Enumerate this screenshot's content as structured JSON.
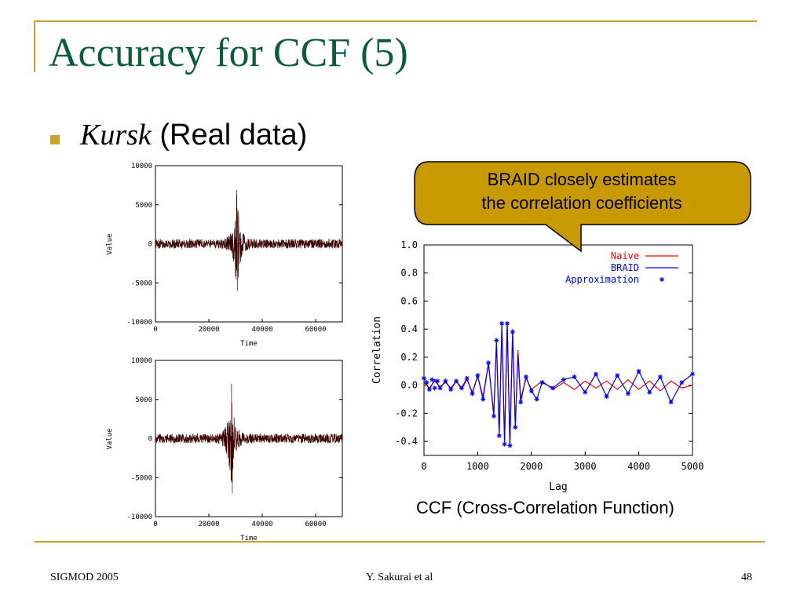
{
  "slide": {
    "title": "Accuracy for CCF (5)",
    "bullet_italic": "Kursk",
    "bullet_rest": " (Real data)",
    "callout_line1": "BRAID closely estimates",
    "callout_line2": "the correlation coefficients",
    "caption": "CCF (Cross-Correlation Function)",
    "footer_left": "SIGMOD 2005",
    "footer_mid": "Y. Sakurai et al",
    "footer_right": "48"
  },
  "colors": {
    "title": "#0b5d3b",
    "accent": "#c9a227",
    "callout_fill": "#c89a00",
    "signal": "#3a0000",
    "naive": "#ff0000",
    "braid": "#0000ff"
  },
  "chart_data": [
    {
      "type": "line",
      "series": [
        {
          "name": "",
          "seed": 1,
          "base_amplitude": 600,
          "peaks": [
            {
              "x": 30500,
              "y": 6900
            },
            {
              "x": 30800,
              "y": -6000
            }
          ]
        }
      ],
      "xlabel": "Time",
      "ylabel": "Value",
      "xlim": [
        0,
        70000
      ],
      "ylim": [
        -10000,
        10000
      ],
      "xticks": [
        0,
        20000,
        40000,
        60000
      ],
      "yticks": [
        10000,
        5000,
        0,
        -5000,
        -10000
      ],
      "grid": false
    },
    {
      "type": "line",
      "series": [
        {
          "name": "",
          "seed": 7,
          "base_amplitude": 600,
          "peaks": [
            {
              "x": 28500,
              "y": 7000
            },
            {
              "x": 28800,
              "y": -7000
            }
          ]
        }
      ],
      "xlabel": "Time",
      "ylabel": "Value",
      "xlim": [
        0,
        70000
      ],
      "ylim": [
        -10000,
        10000
      ],
      "xticks": [
        0,
        20000,
        40000,
        60000
      ],
      "yticks": [
        10000,
        5000,
        0,
        -5000,
        -10000
      ],
      "grid": false
    },
    {
      "type": "line",
      "xlabel": "Lag",
      "ylabel": "Correlation",
      "xlim": [
        0,
        5000
      ],
      "ylim": [
        -0.5,
        1.0
      ],
      "xticks": [
        0,
        1000,
        2000,
        3000,
        4000,
        5000
      ],
      "yticks": [
        1.0,
        0.8,
        0.6,
        0.4,
        0.2,
        0.0,
        -0.2,
        -0.4
      ],
      "ytick_labels": [
        "1.0",
        "0.8",
        "0.6",
        "0.4",
        "0.2",
        "0.0",
        "-0.2",
        "-0.4"
      ],
      "legend": [
        "Naive",
        "BRAID",
        "Approximation"
      ],
      "legend_position": "top-right",
      "series": [
        {
          "name": "Naive",
          "style": "line",
          "color": "#ff0000",
          "x": [
            0,
            100,
            200,
            300,
            400,
            500,
            600,
            700,
            800,
            900,
            1000,
            1100,
            1200,
            1300,
            1350,
            1400,
            1450,
            1500,
            1550,
            1600,
            1650,
            1700,
            1750,
            1800,
            1900,
            2000,
            2200,
            2400,
            2600,
            2800,
            3000,
            3200,
            3400,
            3600,
            3800,
            4000,
            4200,
            4400,
            4600,
            4800,
            5000
          ],
          "y": [
            0.02,
            -0.02,
            0.03,
            -0.01,
            0.02,
            -0.02,
            0.03,
            -0.03,
            0.04,
            -0.05,
            0.06,
            -0.08,
            0.15,
            -0.2,
            0.3,
            -0.35,
            0.42,
            -0.4,
            0.45,
            -0.42,
            0.4,
            -0.3,
            0.25,
            -0.1,
            0.05,
            -0.03,
            0.03,
            -0.03,
            0.02,
            -0.03,
            0.03,
            -0.02,
            0.03,
            -0.03,
            0.04,
            -0.03,
            0.03,
            -0.04,
            0.03,
            -0.02,
            0.0
          ]
        },
        {
          "name": "BRAID",
          "style": "line",
          "color": "#0000ff",
          "x": [
            0,
            100,
            200,
            300,
            400,
            500,
            600,
            700,
            800,
            900,
            1000,
            1100,
            1200,
            1300,
            1350,
            1400,
            1450,
            1500,
            1550,
            1600,
            1650,
            1700,
            1750,
            1800,
            1900,
            2000,
            2100,
            2200,
            2400,
            2600,
            2800,
            3000,
            3200,
            3400,
            3600,
            3800,
            4000,
            4200,
            4400,
            4600,
            4800,
            5000
          ],
          "y": [
            0.05,
            -0.03,
            0.04,
            -0.02,
            0.03,
            -0.03,
            0.03,
            -0.02,
            0.05,
            -0.06,
            0.07,
            -0.1,
            0.16,
            -0.22,
            0.32,
            -0.36,
            0.44,
            -0.42,
            0.44,
            -0.43,
            0.38,
            -0.3,
            0.22,
            -0.12,
            0.06,
            -0.04,
            -0.1,
            0.02,
            -0.02,
            0.04,
            0.06,
            -0.05,
            0.08,
            -0.08,
            0.07,
            -0.06,
            0.1,
            -0.05,
            0.06,
            -0.12,
            0.02,
            0.08
          ]
        },
        {
          "name": "Approximation",
          "style": "marker",
          "color": "#0000ff",
          "x": [
            0,
            50,
            100,
            150,
            200,
            250,
            300,
            400,
            500,
            600,
            700,
            800,
            900,
            1000,
            1100,
            1200,
            1300,
            1350,
            1400,
            1450,
            1500,
            1550,
            1600,
            1650,
            1700,
            1800,
            1900,
            2000,
            2100,
            2200,
            2400,
            2600,
            2800,
            3000,
            3200,
            3400,
            3600,
            3800,
            4000,
            4200,
            4400,
            4600,
            4800,
            5000
          ],
          "y": [
            0.05,
            0.02,
            -0.03,
            0.04,
            -0.02,
            0.03,
            -0.02,
            0.03,
            -0.03,
            0.03,
            -0.02,
            0.05,
            -0.06,
            0.07,
            -0.1,
            0.16,
            -0.22,
            0.32,
            -0.36,
            0.44,
            -0.42,
            0.44,
            -0.43,
            0.38,
            -0.3,
            -0.12,
            0.06,
            -0.04,
            -0.1,
            0.02,
            -0.02,
            0.04,
            0.06,
            -0.05,
            0.08,
            -0.08,
            0.07,
            -0.06,
            0.1,
            -0.05,
            0.06,
            -0.12,
            0.02,
            0.08
          ]
        }
      ]
    }
  ]
}
